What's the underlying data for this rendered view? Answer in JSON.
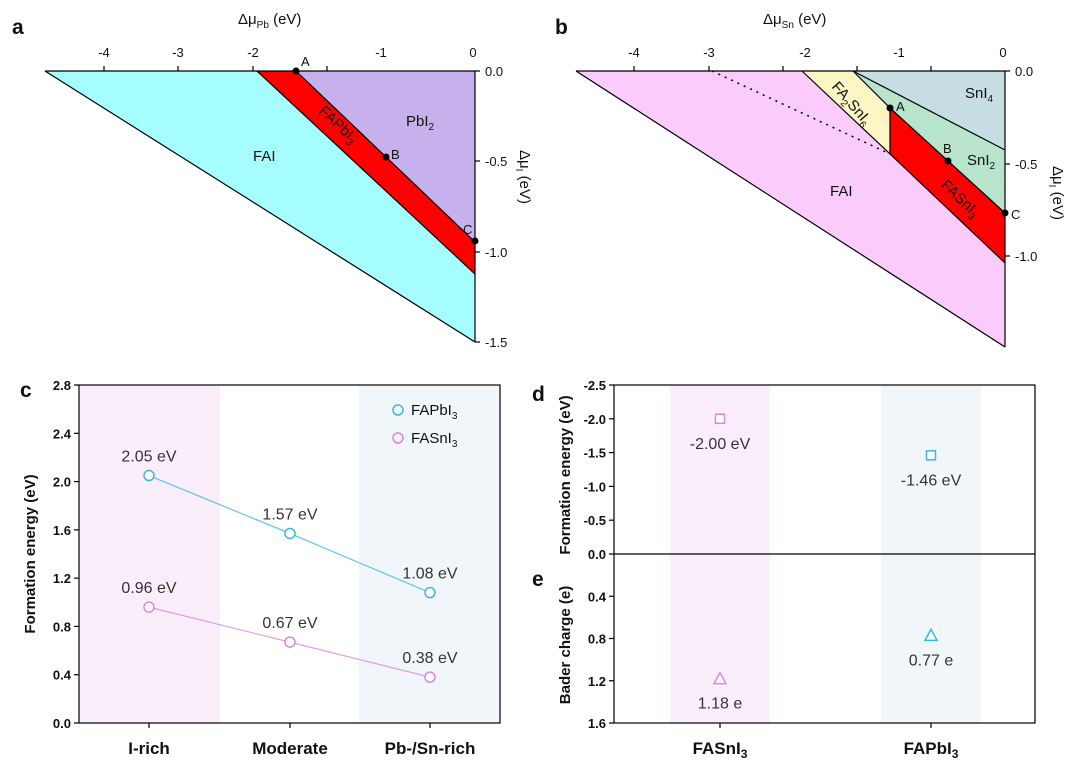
{
  "panels": {
    "a": {
      "letter": "a",
      "xlabel_main": "Δμ",
      "xlabel_sub": "Pb",
      "xlabel_unit": " (eV)",
      "ylabel_main": "Δμ",
      "ylabel_sub": "I",
      "ylabel_unit": " (eV)",
      "xticks": [
        "-4",
        "-3",
        "-2",
        "-1",
        "0"
      ],
      "yticks": [
        "0.0",
        "-0.5",
        "-1.0",
        "-1.5"
      ],
      "regions": {
        "FAI": "FAI",
        "PbI2": "PbI",
        "PbI2_sub": "2",
        "FAPbI3": "FAPbI",
        "FAPbI3_sub": "3"
      },
      "points": [
        "A",
        "B",
        "C"
      ],
      "colors": {
        "FAI": "#a6fdfd",
        "FAPbI3": "#ff0000",
        "PbI2": "#c7b1ec"
      }
    },
    "b": {
      "letter": "b",
      "xlabel_main": "Δμ",
      "xlabel_sub": "Sn",
      "xlabel_unit": " (eV)",
      "ylabel_main": "Δμ",
      "ylabel_sub": "I",
      "ylabel_unit": " (eV)",
      "xticks": [
        "-4",
        "-3",
        "-2",
        "-1",
        "0"
      ],
      "yticks": [
        "0.0",
        "-0.5",
        "-1.0"
      ],
      "regions": {
        "FAI": "FAI",
        "SnI4": "SnI",
        "SnI4_sub": "4",
        "SnI2": "SnI",
        "SnI2_sub": "2",
        "FASnI3": "FASnI",
        "FASnI3_sub": "3",
        "FA2SnI6_a": "FA",
        "FA2SnI6_b": "2",
        "FA2SnI6_c": "SnI",
        "FA2SnI6_d": "6"
      },
      "points": [
        "A",
        "B",
        "C"
      ],
      "colors": {
        "FAI": "#fbcbfb",
        "FA2SnI6": "#fbf6c4",
        "SnI4": "#c5dde3",
        "SnI2": "#b7e4cb",
        "FASnI3": "#ff0000"
      }
    },
    "c": {
      "letter": "c",
      "ylabel": "Formation energy (eV)",
      "yticks": [
        "0.0",
        "0.4",
        "0.8",
        "1.2",
        "1.6",
        "2.0",
        "2.4",
        "2.8"
      ],
      "legend": {
        "FAPbI3": "FAPbI",
        "FAPbI3_sub": "3",
        "FASnI3": "FASnI",
        "FASnI3_sub": "3"
      },
      "colors": {
        "FAPbI3": "#3db4e6",
        "FASnI3": "#d886e2"
      }
    },
    "d": {
      "letter": "d",
      "ylabel": "Formation energy (eV)",
      "yticks": [
        "-2.5",
        "-2.0",
        "-1.5",
        "-1.0",
        "-0.5",
        "0.0"
      ],
      "colors": {
        "FASnI3": "#d886e2",
        "FAPbI3": "#3db4e6"
      }
    },
    "e": {
      "letter": "e",
      "ylabel": "Bader charge (e)",
      "yticks": [
        "0.4",
        "0.8",
        "1.2",
        "1.6"
      ],
      "categories": [
        {
          "main": "FASnI",
          "sub": "3"
        },
        {
          "main": "FAPbI",
          "sub": "3"
        }
      ]
    }
  },
  "chart_data": [
    {
      "panel": "c",
      "type": "line",
      "categories": [
        "I-rich",
        "Moderate",
        "Pb-/Sn-rich"
      ],
      "ylabel": "Formation energy (eV)",
      "ylim": [
        0.0,
        2.8
      ],
      "series": [
        {
          "name": "FAPbI3",
          "values": [
            2.05,
            1.57,
            1.08
          ],
          "labels": [
            "2.05 eV",
            "1.57 eV",
            "1.08 eV"
          ]
        },
        {
          "name": "FASnI3",
          "values": [
            0.96,
            0.67,
            0.38
          ],
          "labels": [
            "0.96 eV",
            "0.67 eV",
            "0.38 eV"
          ]
        }
      ]
    },
    {
      "panel": "d",
      "type": "scatter",
      "categories": [
        "FASnI3",
        "FAPbI3"
      ],
      "ylabel": "Formation energy (eV)",
      "ylim": [
        -2.5,
        0.0
      ],
      "values": [
        -2.0,
        -1.46
      ],
      "labels": [
        "-2.00 eV",
        "-1.46 eV"
      ]
    },
    {
      "panel": "e",
      "type": "scatter",
      "categories": [
        "FASnI3",
        "FAPbI3"
      ],
      "ylabel": "Bader charge (e)",
      "ylim": [
        0.0,
        1.6
      ],
      "values": [
        1.18,
        0.77
      ],
      "labels": [
        "1.18 e",
        "0.77 e"
      ]
    }
  ]
}
